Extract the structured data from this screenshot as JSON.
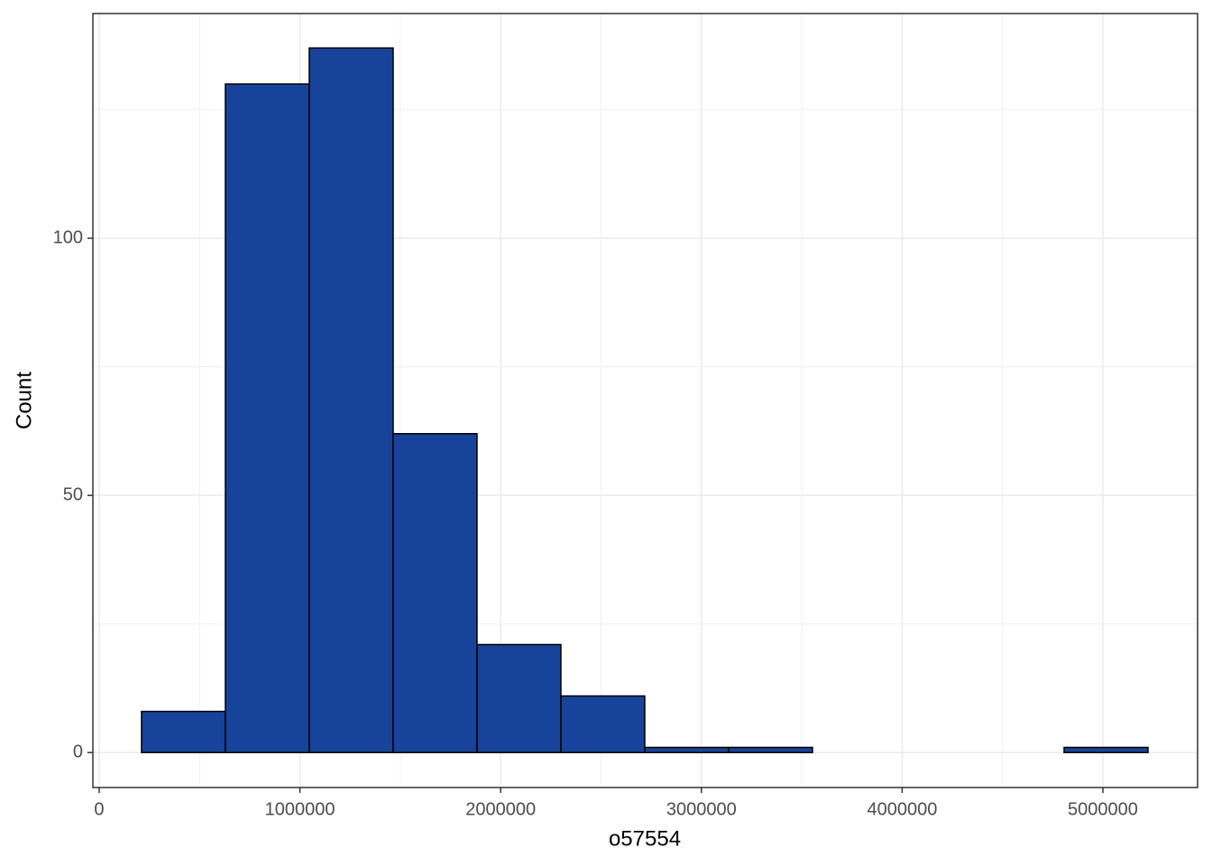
{
  "chart_data": {
    "type": "histogram",
    "x_label": "o57554",
    "y_label": "Count",
    "bins": [
      211000,
      628800,
      1046600,
      1464400,
      1882200,
      2300000,
      2717800,
      3135600,
      3553400,
      3971200,
      4389000,
      4806800,
      5224600
    ],
    "values": [
      8,
      130,
      137,
      62,
      21,
      11,
      1,
      1,
      0,
      0,
      0,
      1
    ],
    "color": "#17449a",
    "edge_color": "#000000",
    "xlim": [
      -31400,
      5471700
    ],
    "ylim": [
      -6.8,
      143.7
    ],
    "xticks": [
      0,
      1000000,
      2000000,
      3000000,
      4000000,
      5000000
    ],
    "yticks": [
      0,
      50,
      100
    ],
    "grid": true,
    "minor_grid": true
  }
}
